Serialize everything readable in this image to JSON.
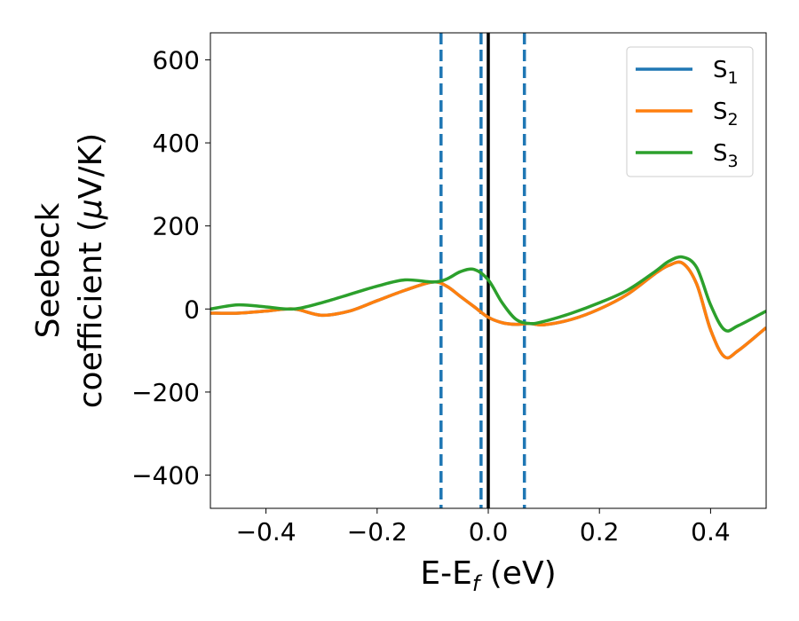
{
  "chart_data": {
    "type": "line",
    "title": "",
    "xlabel": {
      "main": "E-E",
      "sub": "f",
      "unit": " (eV)"
    },
    "ylabel": {
      "line1": "Seebeck",
      "line2": "coefficient  (",
      "mu": "μ",
      "unit": "V/K)"
    },
    "xlim": [
      -0.5,
      0.5
    ],
    "ylim": [
      -480,
      665
    ],
    "xticks": [
      -0.4,
      -0.2,
      0.0,
      0.2,
      0.4
    ],
    "xtick_labels": [
      "−0.4",
      "−0.2",
      "0.0",
      "0.2",
      "0.4"
    ],
    "yticks": [
      -400,
      -200,
      0,
      200,
      400,
      600
    ],
    "ytick_labels": [
      "−400",
      "−200",
      "0",
      "200",
      "400",
      "600"
    ],
    "grid": false,
    "legend_position": "top-right",
    "vlines": [
      {
        "x": -0.085,
        "style": "dashed",
        "color": "#1f77b4"
      },
      {
        "x": -0.013,
        "style": "dashed",
        "color": "#1f77b4"
      },
      {
        "x": 0.0,
        "style": "solid",
        "color": "#000000"
      },
      {
        "x": 0.065,
        "style": "dashed",
        "color": "#1f77b4"
      }
    ],
    "series": [
      {
        "name": "S",
        "sub": "1",
        "color": "#1f77b4",
        "x": [
          -0.5,
          -0.45,
          -0.4,
          -0.35,
          -0.3,
          -0.25,
          -0.2,
          -0.15,
          -0.1,
          -0.075,
          -0.05,
          -0.025,
          0.0,
          0.025,
          0.05,
          0.075,
          0.1,
          0.15,
          0.2,
          0.25,
          0.3,
          0.325,
          0.35,
          0.375,
          0.4,
          0.425,
          0.45,
          0.5
        ],
        "y": [
          -10,
          -10,
          -5,
          0,
          -15,
          -5,
          20,
          45,
          65,
          55,
          30,
          5,
          -20,
          -33,
          -37,
          -35,
          -38,
          -25,
          0,
          35,
          85,
          105,
          110,
          60,
          -50,
          -115,
          -100,
          -45
        ]
      },
      {
        "name": "S",
        "sub": "2",
        "color": "#ff7f0e",
        "x": [
          -0.5,
          -0.45,
          -0.4,
          -0.35,
          -0.3,
          -0.25,
          -0.2,
          -0.15,
          -0.1,
          -0.075,
          -0.05,
          -0.025,
          0.0,
          0.025,
          0.05,
          0.075,
          0.1,
          0.15,
          0.2,
          0.25,
          0.3,
          0.325,
          0.35,
          0.375,
          0.4,
          0.425,
          0.45,
          0.5
        ],
        "y": [
          -10,
          -10,
          -5,
          0,
          -15,
          -5,
          20,
          45,
          65,
          55,
          30,
          5,
          -20,
          -33,
          -37,
          -35,
          -38,
          -25,
          0,
          35,
          85,
          105,
          110,
          60,
          -50,
          -115,
          -100,
          -45
        ]
      },
      {
        "name": "S",
        "sub": "3",
        "color": "#2ca02c",
        "x": [
          -0.5,
          -0.45,
          -0.4,
          -0.35,
          -0.3,
          -0.25,
          -0.2,
          -0.15,
          -0.1,
          -0.075,
          -0.05,
          -0.025,
          0.0,
          0.025,
          0.05,
          0.075,
          0.1,
          0.15,
          0.2,
          0.25,
          0.3,
          0.325,
          0.35,
          0.375,
          0.4,
          0.425,
          0.45,
          0.5
        ],
        "y": [
          0,
          10,
          5,
          0,
          15,
          35,
          55,
          70,
          65,
          72,
          90,
          95,
          70,
          15,
          -25,
          -35,
          -30,
          -10,
          15,
          45,
          90,
          115,
          125,
          100,
          10,
          -50,
          -40,
          -5
        ]
      }
    ]
  }
}
